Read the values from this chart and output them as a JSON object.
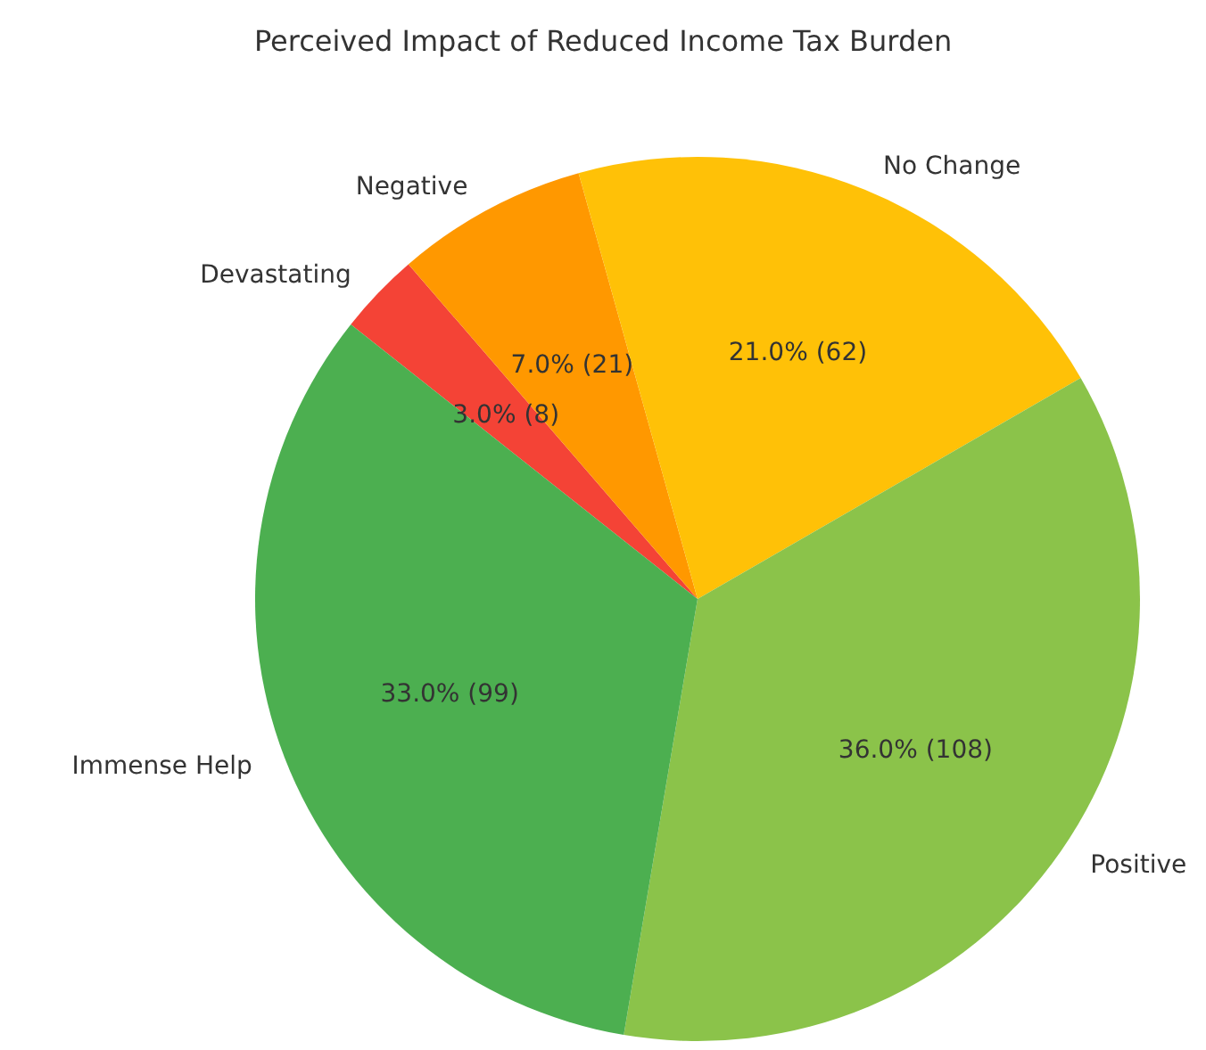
{
  "chart_data": {
    "type": "pie",
    "title": "Perceived Impact of Reduced Income Tax Burden",
    "categories": [
      "Devastating",
      "Negative",
      "No Change",
      "Positive",
      "Immense Help"
    ],
    "values": [
      3,
      7,
      21,
      36,
      33
    ],
    "value_labels": [
      "3.0% (8)",
      "7.0% (21)",
      "21.0% (62)",
      "36.0% (108)",
      "33.0% (99)"
    ],
    "colors": [
      "#f44336",
      "#ff9800",
      "#ffc107",
      "#8bc34a",
      "#4caf50"
    ],
    "legend": false
  }
}
